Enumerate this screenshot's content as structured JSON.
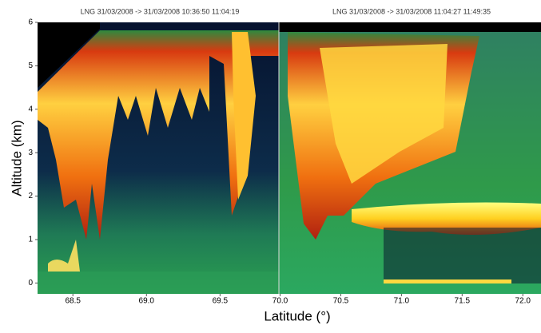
{
  "chart_data": [
    {
      "type": "heatmap",
      "title": "LNG 31/03/2008 -> 31/03/2008 10:36:50 11:04:19",
      "xlim": [
        68.26,
        69.9
      ],
      "xticks": [
        68.5,
        {
          "value": 69,
          "label": "69.0"
        },
        69.5
      ],
      "ylim": [
        -0.25,
        6
      ],
      "yticks": [
        0,
        1,
        2,
        3,
        4,
        5,
        6
      ],
      "y_label": "Altitude (km)",
      "x_label": "Latitude  (°)"
    },
    {
      "type": "heatmap",
      "title": "LNG 31/03/2008 -> 31/03/2008 11:04:27 11:49:35",
      "xlim": [
        69.99,
        72.15
      ],
      "xticks": [
        {
          "value": 70,
          "label": "70.0"
        },
        70.5,
        {
          "value": 71,
          "label": "71.0"
        },
        71.5,
        {
          "value": 72,
          "label": "72.0"
        }
      ],
      "ylim": [
        -0.25,
        6
      ]
    }
  ]
}
